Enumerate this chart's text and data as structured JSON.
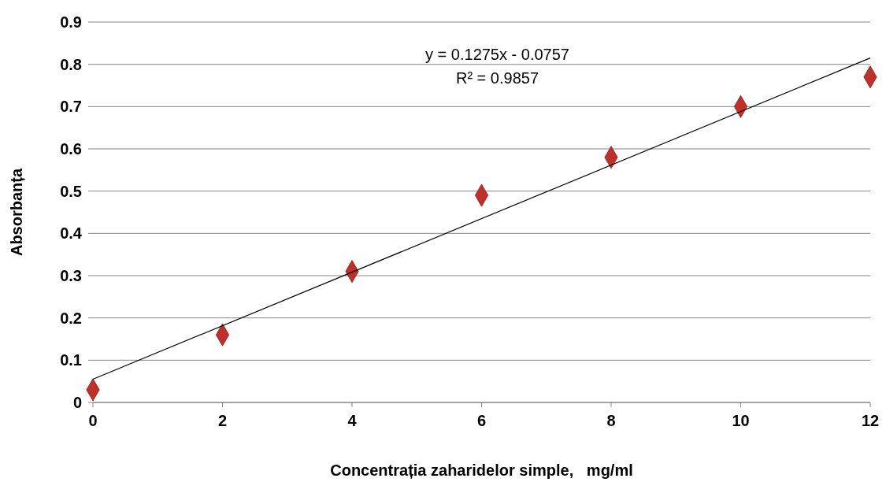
{
  "chart_data": {
    "type": "scatter",
    "xlabel": "Concentrația zaharidelor simple,   mg/ml",
    "ylabel": "Absorbanța",
    "annotations": [
      "y = 0.1275x - 0.0757",
      "R² = 0.9857"
    ],
    "xlim": [
      0,
      12
    ],
    "xticks": [
      0,
      2,
      4,
      6,
      8,
      10,
      12
    ],
    "ylim": [
      0,
      0.9
    ],
    "yticks": [
      0,
      0.1,
      0.2,
      0.3,
      0.4,
      0.5,
      0.6,
      0.7,
      0.8,
      0.9
    ],
    "grid": "y",
    "marker": "diamond",
    "x": [
      0,
      2,
      4,
      6,
      8,
      10,
      12
    ],
    "series": [
      {
        "color": "#c0302a",
        "values": [
          0.03,
          0.16,
          0.31,
          0.49,
          0.58,
          0.7,
          0.77
        ]
      },
      {
        "type": "line",
        "color": "#000000",
        "marker": "none",
        "x": [
          0,
          12
        ],
        "values": [
          0.055,
          0.815
        ]
      }
    ]
  }
}
